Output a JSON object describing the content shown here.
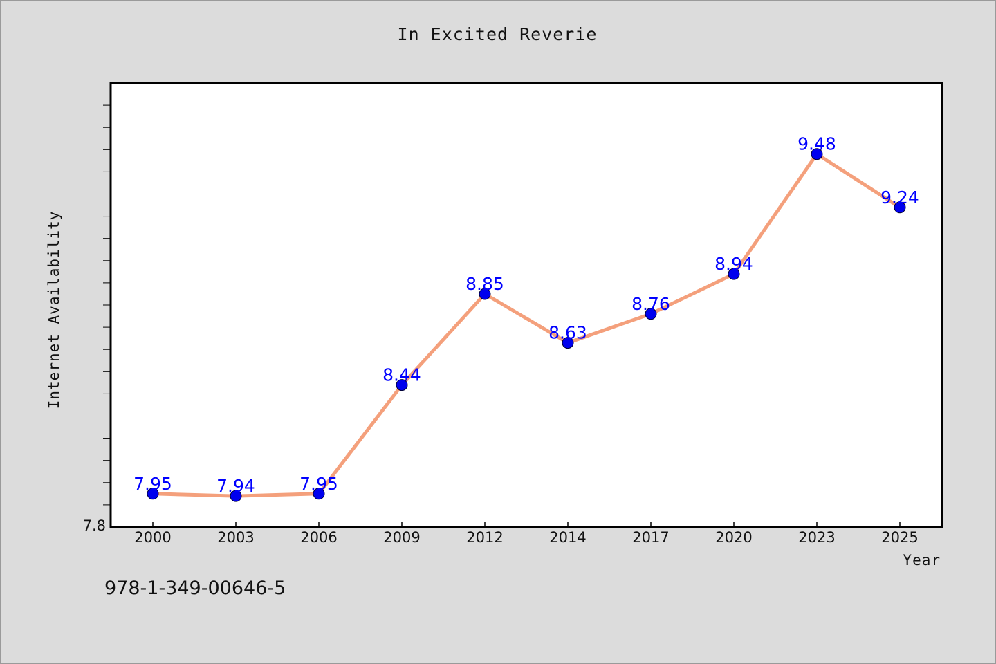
{
  "chart_data": {
    "type": "line",
    "title": "In Excited Reverie",
    "xlabel": "Year",
    "ylabel": "Internet Availability",
    "categories": [
      "2000",
      "2003",
      "2006",
      "2009",
      "2012",
      "2014",
      "2017",
      "2020",
      "2023",
      "2025"
    ],
    "series": [
      {
        "values": [
          7.95,
          7.94,
          7.95,
          8.44,
          8.85,
          8.63,
          8.76,
          8.94,
          9.48,
          9.24
        ]
      }
    ],
    "ylim": [
      7.8,
      9.8
    ],
    "y_tick_labels": [
      "7.8"
    ],
    "line_color": "#f4a07c",
    "marker_color": "#0000ee",
    "label_color": "#0000ff",
    "grid": false,
    "legend": "none"
  },
  "footer": {
    "isbn": "978-1-349-00646-5"
  }
}
